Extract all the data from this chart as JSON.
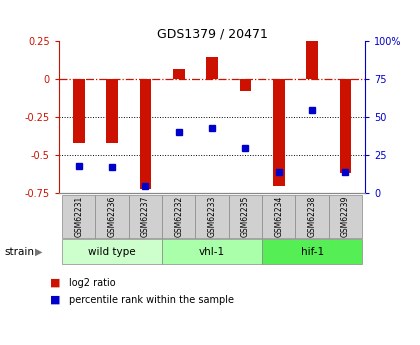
{
  "title": "GDS1379 / 20471",
  "samples": [
    "GSM62231",
    "GSM62236",
    "GSM62237",
    "GSM62232",
    "GSM62233",
    "GSM62235",
    "GSM62234",
    "GSM62238",
    "GSM62239"
  ],
  "log2_ratio": [
    -0.42,
    -0.42,
    -0.72,
    0.07,
    0.15,
    -0.08,
    -0.7,
    0.25,
    -0.62
  ],
  "percentile_rank": [
    18,
    17,
    5,
    40,
    43,
    30,
    14,
    55,
    14
  ],
  "ylim_left": [
    -0.75,
    0.25
  ],
  "ylim_right": [
    0,
    100
  ],
  "yticks_left": [
    -0.75,
    -0.5,
    -0.25,
    0.0,
    0.25
  ],
  "yticks_right": [
    0,
    25,
    50,
    75,
    100
  ],
  "groups": [
    {
      "label": "wild type",
      "start": 0,
      "end": 3,
      "color": "#ccffcc"
    },
    {
      "label": "vhl-1",
      "start": 3,
      "end": 6,
      "color": "#aaffaa"
    },
    {
      "label": "hif-1",
      "start": 6,
      "end": 9,
      "color": "#55ee55"
    }
  ],
  "bar_color": "#cc1100",
  "dot_color": "#0000cc",
  "bar_width": 0.35,
  "hline_y": 0.0,
  "dotted_lines": [
    -0.25,
    -0.5
  ],
  "strain_label": "strain",
  "legend_log2": "log2 ratio",
  "legend_pct": "percentile rank within the sample",
  "left_axis_color": "#cc1100",
  "right_axis_color": "#0000cc",
  "background_color": "#ffffff",
  "sample_box_color": "#d0d0d0",
  "title_fontsize": 9,
  "tick_fontsize": 7,
  "sample_fontsize": 5.5,
  "group_fontsize": 7.5,
  "legend_fontsize": 7
}
